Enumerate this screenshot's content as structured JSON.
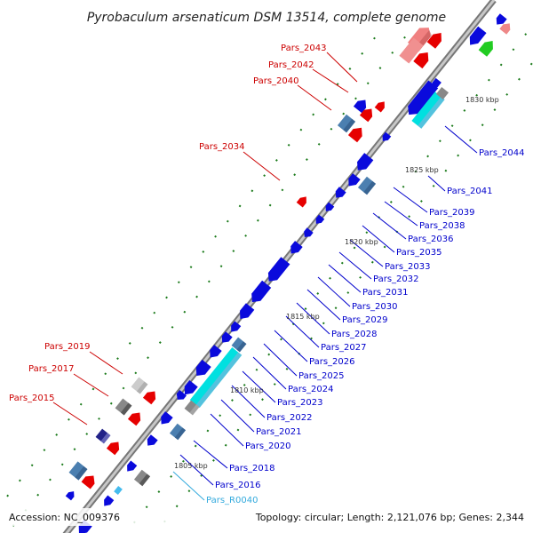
{
  "title": "Pyrobaculum arsenaticum DSM 13514, complete genome",
  "footer": {
    "accession": "Accession: NC_009376",
    "summary": "Topology: circular; Length: 2,121,076 bp; Genes: 2,344"
  },
  "colors": {
    "forward_label": "#cc0000",
    "reverse_label": "#0000cc",
    "rna_label": "#33aadd",
    "backbone": "#9a9a9a"
  },
  "position_labels": [
    "1805 kbp",
    "1810 kbp",
    "1815 kbp",
    "1820 kbp",
    "1825 kbp",
    "1830 kbp"
  ],
  "forward_gene_labels": [
    "Pars_2043",
    "Pars_2042",
    "Pars_2040",
    "Pars_2034",
    "Pars_2019",
    "Pars_2017",
    "Pars_2015"
  ],
  "reverse_gene_labels": [
    "Pars_2044",
    "Pars_2041",
    "Pars_2039",
    "Pars_2038",
    "Pars_2036",
    "Pars_2035",
    "Pars_2033",
    "Pars_2032",
    "Pars_2031",
    "Pars_2030",
    "Pars_2029",
    "Pars_2028",
    "Pars_2027",
    "Pars_2026",
    "Pars_2025",
    "Pars_2024",
    "Pars_2023",
    "Pars_2022",
    "Pars_2021",
    "Pars_2020",
    "Pars_2018",
    "Pars_2016"
  ],
  "rna_gene_labels": [
    "Pars_R0040"
  ]
}
